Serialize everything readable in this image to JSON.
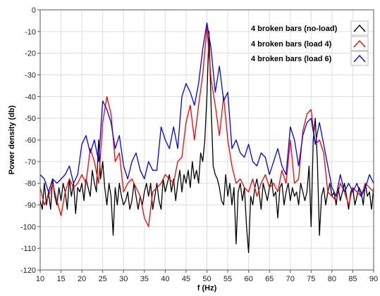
{
  "chart_data": {
    "type": "line",
    "xlabel": "f (Hz)",
    "ylabel": "Power density (db)",
    "xlim": [
      10,
      90
    ],
    "ylim": [
      -120,
      0
    ],
    "x_ticks": [
      10,
      15,
      20,
      25,
      30,
      35,
      40,
      45,
      50,
      55,
      60,
      65,
      70,
      75,
      80,
      85,
      90
    ],
    "y_ticks": [
      0,
      -10,
      -20,
      -30,
      -40,
      -50,
      -60,
      -70,
      -80,
      -90,
      -100,
      -110,
      -120
    ],
    "grid": true,
    "legend_position": "top-right",
    "series": [
      {
        "name": "4 broken bars (no-load)",
        "color": "#000000",
        "x": [
          10,
          10.5,
          11,
          11.5,
          12,
          12.5,
          13,
          13.5,
          14,
          14.5,
          15,
          15.5,
          16,
          16.5,
          17,
          17.5,
          18,
          18.5,
          19,
          19.5,
          20,
          20.5,
          21,
          21.5,
          22,
          22.5,
          23,
          23.5,
          24,
          24.5,
          25,
          25.5,
          26,
          26.5,
          27,
          27.5,
          28,
          28.5,
          29,
          29.5,
          30,
          30.5,
          31,
          31.5,
          32,
          32.5,
          33,
          33.5,
          34,
          34.5,
          35,
          35.5,
          36,
          36.5,
          37,
          37.5,
          38,
          38.5,
          39,
          39.5,
          40,
          40.5,
          41,
          41.5,
          42,
          42.5,
          43,
          43.5,
          44,
          44.5,
          45,
          45.5,
          46,
          46.5,
          47,
          47.5,
          48,
          48.5,
          49,
          49.5,
          50,
          50.5,
          51,
          51.5,
          52,
          52.5,
          53,
          53.5,
          54,
          54.5,
          55,
          55.5,
          56,
          56.5,
          57,
          57.5,
          58,
          58.5,
          59,
          59.5,
          60,
          60.5,
          61,
          61.5,
          62,
          62.5,
          63,
          63.5,
          64,
          64.5,
          65,
          65.5,
          66,
          66.5,
          67,
          67.5,
          68,
          68.5,
          69,
          69.5,
          70,
          70.5,
          71,
          71.5,
          72,
          72.5,
          73,
          73.5,
          74,
          74.5,
          75,
          75.5,
          76,
          76.5,
          77,
          77.5,
          78,
          78.5,
          79,
          79.5,
          80,
          80.5,
          81,
          81.5,
          82,
          82.5,
          83,
          83.5,
          84,
          84.5,
          85,
          85.5,
          86,
          86.5,
          87,
          87.5,
          88,
          88.5,
          89,
          89.5,
          90
        ],
        "y": [
          -88,
          -92,
          -80,
          -90,
          -84,
          -92,
          -78,
          -86,
          -90,
          -82,
          -88,
          -80,
          -84,
          -92,
          -78,
          -86,
          -80,
          -94,
          -82,
          -84,
          -80,
          -88,
          -78,
          -82,
          -86,
          -74,
          -80,
          -84,
          -60,
          -78,
          -70,
          -82,
          -90,
          -80,
          -86,
          -104,
          -82,
          -90,
          -80,
          -86,
          -90,
          -88,
          -84,
          -92,
          -88,
          -80,
          -86,
          -92,
          -86,
          -90,
          -84,
          -80,
          -86,
          -80,
          -92,
          -86,
          -80,
          -88,
          -92,
          -78,
          -84,
          -80,
          -76,
          -84,
          -78,
          -88,
          -80,
          -74,
          -84,
          -76,
          -80,
          -74,
          -82,
          -70,
          -78,
          -74,
          -80,
          -66,
          -70,
          -60,
          -40,
          -10,
          -44,
          -72,
          -76,
          -78,
          -82,
          -88,
          -90,
          -76,
          -86,
          -80,
          -90,
          -82,
          -108,
          -84,
          -80,
          -88,
          -82,
          -100,
          -112,
          -86,
          -90,
          -82,
          -78,
          -84,
          -92,
          -80,
          -84,
          -88,
          -82,
          -78,
          -86,
          -84,
          -96,
          -82,
          -80,
          -90,
          -84,
          -80,
          -88,
          -82,
          -86,
          -84,
          -90,
          -80,
          -84,
          -88,
          -84,
          -72,
          -100,
          -60,
          -50,
          -70,
          -104,
          -86,
          -82,
          -90,
          -84,
          -80,
          -86,
          -84,
          -90,
          -82,
          -88,
          -84,
          -80,
          -86,
          -92,
          -84,
          -82,
          -90,
          -86,
          -82,
          -84,
          -90,
          -80,
          -86,
          -84,
          -92,
          -82
        ]
      },
      {
        "name": "4 broken bars (load 4)",
        "color": "#ff0000",
        "x": [
          10,
          11,
          12,
          13,
          14,
          15,
          16,
          17,
          18,
          19,
          20,
          21,
          22,
          23,
          24,
          25,
          26,
          27,
          28,
          29,
          30,
          31,
          32,
          33,
          34,
          35,
          36,
          37,
          38,
          39,
          40,
          41,
          42,
          43,
          44,
          45,
          46,
          47,
          48,
          49,
          50,
          51,
          52,
          53,
          54,
          55,
          56,
          57,
          58,
          59,
          60,
          61,
          62,
          63,
          64,
          65,
          66,
          67,
          68,
          69,
          70,
          71,
          72,
          73,
          74,
          75,
          76,
          77,
          78,
          79,
          80,
          81,
          82,
          83,
          84,
          85,
          86,
          87,
          88,
          89,
          90
        ],
        "y": [
          -82,
          -90,
          -86,
          -80,
          -88,
          -95,
          -84,
          -78,
          -82,
          -80,
          -76,
          -80,
          -64,
          -70,
          -80,
          -52,
          -40,
          -48,
          -70,
          -66,
          -84,
          -80,
          -78,
          -82,
          -86,
          -96,
          -100,
          -84,
          -82,
          -80,
          -76,
          -78,
          -80,
          -70,
          -68,
          -52,
          -44,
          -60,
          -44,
          -30,
          -8,
          -32,
          -44,
          -58,
          -40,
          -60,
          -72,
          -80,
          -78,
          -82,
          -84,
          -78,
          -86,
          -80,
          -76,
          -82,
          -80,
          -84,
          -74,
          -80,
          -60,
          -80,
          -78,
          -56,
          -48,
          -46,
          -62,
          -60,
          -66,
          -84,
          -86,
          -88,
          -80,
          -84,
          -90,
          -82,
          -84,
          -86,
          -80,
          -82,
          -84
        ]
      },
      {
        "name": "4 broken bars (load 6)",
        "color": "#0000ff",
        "x": [
          10,
          11,
          12,
          13,
          14,
          15,
          16,
          17,
          18,
          19,
          20,
          21,
          22,
          23,
          24,
          25,
          26,
          27,
          28,
          29,
          30,
          31,
          32,
          33,
          34,
          35,
          36,
          37,
          38,
          39,
          40,
          41,
          42,
          43,
          44,
          45,
          46,
          47,
          48,
          49,
          50,
          51,
          52,
          53,
          54,
          55,
          56,
          57,
          58,
          59,
          60,
          61,
          62,
          63,
          64,
          65,
          66,
          67,
          68,
          69,
          70,
          71,
          72,
          73,
          74,
          75,
          76,
          77,
          78,
          79,
          80,
          81,
          82,
          83,
          84,
          85,
          86,
          87,
          88,
          89,
          90
        ],
        "y": [
          -76,
          -78,
          -84,
          -78,
          -80,
          -78,
          -76,
          -72,
          -80,
          -76,
          -62,
          -58,
          -66,
          -60,
          -70,
          -42,
          -46,
          -52,
          -64,
          -58,
          -72,
          -78,
          -70,
          -66,
          -74,
          -78,
          -70,
          -74,
          -74,
          -54,
          -60,
          -64,
          -54,
          -64,
          -40,
          -34,
          -38,
          -44,
          -34,
          -18,
          -6,
          -18,
          -38,
          -26,
          -42,
          -38,
          -64,
          -60,
          -66,
          -68,
          -62,
          -70,
          -72,
          -66,
          -68,
          -76,
          -70,
          -64,
          -72,
          -76,
          -54,
          -60,
          -72,
          -58,
          -52,
          -50,
          -62,
          -52,
          -62,
          -72,
          -82,
          -86,
          -76,
          -84,
          -80,
          -84,
          -80,
          -86,
          -82,
          -76,
          -80
        ]
      }
    ]
  }
}
